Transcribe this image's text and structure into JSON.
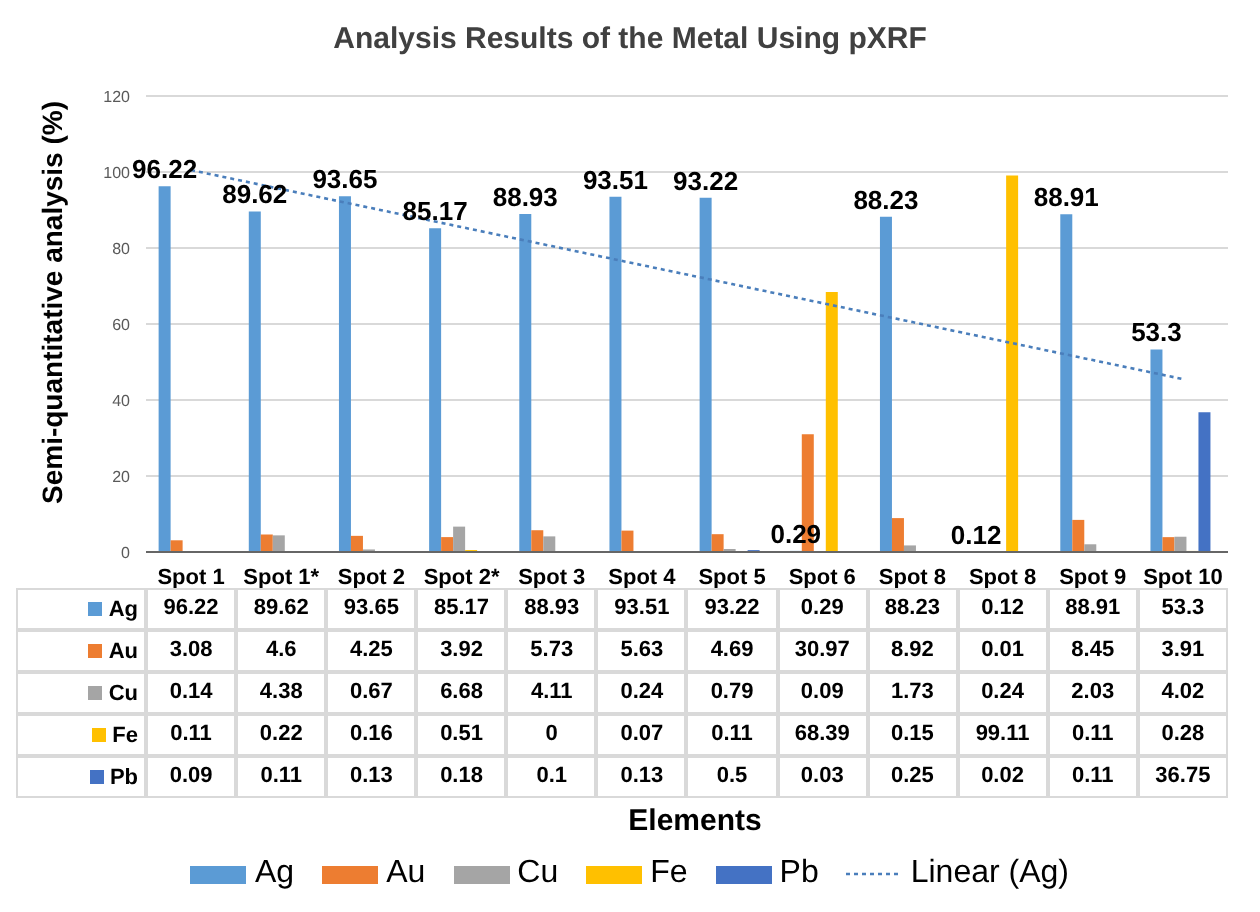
{
  "chart_data": {
    "type": "bar",
    "title": "Analysis Results of the Metal Using pXRF",
    "annotations": [
      "Elements"
    ],
    "ylabel": "Semi-quantitative analysis (%)",
    "categories": [
      "Spot 1",
      "Spot 1*",
      "Spot 2",
      "Spot 2*",
      "Spot 3",
      "Spot 4",
      "Spot 5",
      "Spot 6",
      "Spot 8",
      "Spot 8",
      "Spot 9",
      "Spot 10"
    ],
    "series": [
      {
        "name": "Ag",
        "color": "#5b9bd5",
        "values": [
          96.22,
          89.62,
          93.65,
          85.17,
          88.93,
          93.51,
          93.22,
          0.29,
          88.23,
          0.12,
          88.91,
          53.3
        ],
        "value_labels": [
          "96.22",
          "89.62",
          "93.65",
          "85.17",
          "88.93",
          "93.51",
          "93.22",
          "0.29",
          "88.23",
          "0.12",
          "88.91",
          "53.3"
        ]
      },
      {
        "name": "Au",
        "color": "#ed7d31",
        "values": [
          3.08,
          4.6,
          4.25,
          3.92,
          5.73,
          5.63,
          4.69,
          30.97,
          8.92,
          0.01,
          8.45,
          3.91
        ]
      },
      {
        "name": "Cu",
        "color": "#a5a5a5",
        "values": [
          0.14,
          4.38,
          0.67,
          6.68,
          4.11,
          0.24,
          0.79,
          0.09,
          1.73,
          0.24,
          2.03,
          4.02
        ]
      },
      {
        "name": "Fe",
        "color": "#ffc000",
        "values": [
          0.11,
          0.22,
          0.16,
          0.51,
          0,
          0.07,
          0.11,
          68.39,
          0.15,
          99.11,
          0.11,
          0.28
        ]
      },
      {
        "name": "Pb",
        "color": "#4472c4",
        "values": [
          0.09,
          0.11,
          0.13,
          0.18,
          0.1,
          0.13,
          0.5,
          0.03,
          0.25,
          0.02,
          0.11,
          36.75
        ]
      },
      {
        "name": "Linear (Ag)",
        "type": "line",
        "color": "#4a7ebb",
        "line_style": "dotted",
        "values": [
          100.5,
          95.5,
          90.5,
          85.5,
          80.5,
          75.5,
          70.5,
          65.5,
          60.5,
          55.5,
          50.5,
          45.5
        ],
        "value_labels": [
          null,
          null,
          null,
          null,
          null,
          null,
          null,
          null,
          null,
          null,
          null,
          null
        ]
      }
    ],
    "ylim": [
      0,
      120
    ],
    "yticks": [
      0,
      20,
      40,
      60,
      80,
      100,
      120
    ],
    "grid": "y",
    "legend": "bottom",
    "data_labels": true
  }
}
